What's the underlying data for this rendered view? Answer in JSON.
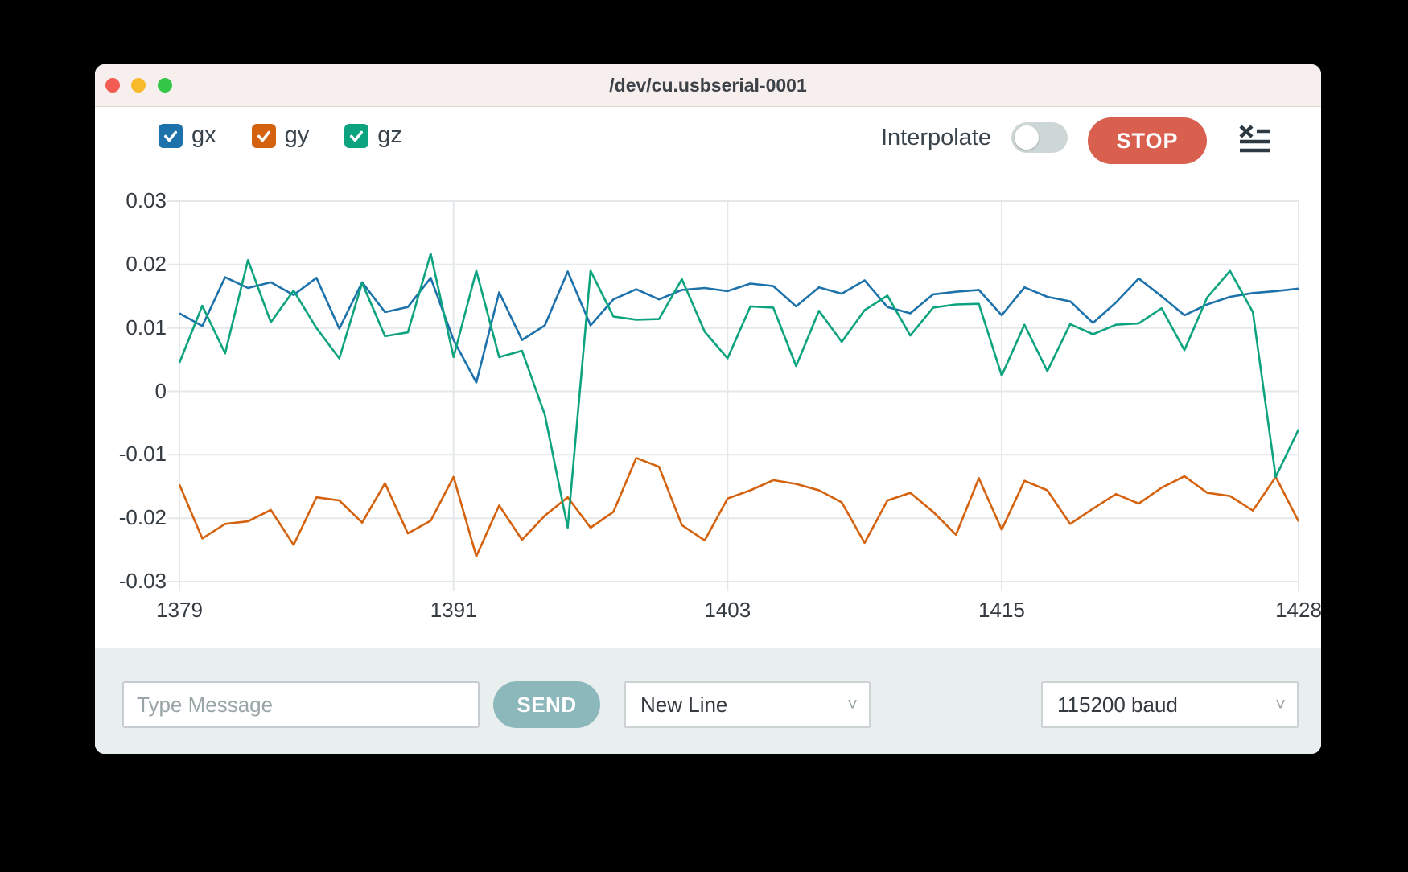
{
  "window": {
    "title": "/dev/cu.usbserial-0001"
  },
  "controls": {
    "interpolate_label": "Interpolate",
    "interpolate_on": false,
    "stop_label": "STOP"
  },
  "chart_data": {
    "type": "line",
    "title": "",
    "xlabel": "",
    "ylabel": "",
    "xlim": [
      1379,
      1428
    ],
    "ylim": [
      -0.03,
      0.03
    ],
    "grid": true,
    "legend_position": "top-left-checkboxes",
    "xticks": [
      1379,
      1391,
      1403,
      1415,
      1428
    ],
    "xtick_labels": [
      "1379",
      "1391",
      "1403",
      "1415",
      "1428"
    ],
    "yticks": [
      0.03,
      0.02,
      0.01,
      0,
      -0.01,
      -0.02,
      -0.03
    ],
    "ytick_labels": [
      "0.03",
      "0.02",
      "0.01",
      "0",
      "-0.01",
      "-0.02",
      "-0.03"
    ],
    "x": [
      1379,
      1380,
      1381,
      1382,
      1383,
      1384,
      1385,
      1386,
      1387,
      1388,
      1389,
      1390,
      1391,
      1392,
      1393,
      1394,
      1395,
      1396,
      1397,
      1398,
      1399,
      1400,
      1401,
      1402,
      1403,
      1404,
      1405,
      1406,
      1407,
      1408,
      1409,
      1410,
      1411,
      1412,
      1413,
      1414,
      1415,
      1416,
      1417,
      1418,
      1419,
      1420,
      1421,
      1422,
      1423,
      1424,
      1425,
      1426,
      1427,
      1428
    ],
    "series": [
      {
        "name": "gx",
        "color": "#1d72ab",
        "checked": true,
        "values": [
          0.0123,
          0.0103,
          0.018,
          0.0163,
          0.0172,
          0.0152,
          0.0179,
          0.0099,
          0.0172,
          0.0125,
          0.0133,
          0.0179,
          0.0081,
          0.0014,
          0.0156,
          0.0081,
          0.0104,
          0.0189,
          0.0104,
          0.0145,
          0.0161,
          0.0145,
          0.016,
          0.0163,
          0.0158,
          0.017,
          0.0166,
          0.0134,
          0.0164,
          0.0154,
          0.0175,
          0.0133,
          0.0123,
          0.0153,
          0.0157,
          0.016,
          0.012,
          0.0164,
          0.0149,
          0.0142,
          0.0108,
          0.014,
          0.0178,
          0.015,
          0.012,
          0.0137,
          0.0149,
          0.0155,
          0.0158,
          0.0162
        ]
      },
      {
        "name": "gy",
        "color": "#d4620f",
        "checked": true,
        "values": [
          -0.0147,
          -0.0232,
          -0.0209,
          -0.0205,
          -0.0187,
          -0.0242,
          -0.0167,
          -0.0172,
          -0.0207,
          -0.0145,
          -0.0224,
          -0.0204,
          -0.0135,
          -0.026,
          -0.018,
          -0.0234,
          -0.0196,
          -0.0167,
          -0.0215,
          -0.019,
          -0.0105,
          -0.0119,
          -0.0211,
          -0.0235,
          -0.0169,
          -0.0156,
          -0.014,
          -0.0146,
          -0.0156,
          -0.0175,
          -0.0239,
          -0.0172,
          -0.016,
          -0.019,
          -0.0226,
          -0.0137,
          -0.0218,
          -0.0141,
          -0.0156,
          -0.0209,
          -0.0185,
          -0.0162,
          -0.0177,
          -0.0152,
          -0.0134,
          -0.016,
          -0.0165,
          -0.0188,
          -0.0135,
          -0.0205
        ]
      },
      {
        "name": "gz",
        "color": "#0da37e",
        "checked": true,
        "values": [
          0.0045,
          0.0135,
          0.006,
          0.0207,
          0.0109,
          0.0159,
          0.01,
          0.0052,
          0.0171,
          0.0087,
          0.0093,
          0.0217,
          0.0054,
          0.019,
          0.0054,
          0.0064,
          -0.0037,
          -0.0215,
          0.019,
          0.0118,
          0.0113,
          0.0114,
          0.0177,
          0.0094,
          0.0052,
          0.0134,
          0.0132,
          0.004,
          0.0127,
          0.0078,
          0.0128,
          0.0151,
          0.0088,
          0.0132,
          0.0137,
          0.0138,
          0.0025,
          0.0105,
          0.0032,
          0.0106,
          0.009,
          0.0105,
          0.0107,
          0.0131,
          0.0065,
          0.0148,
          0.019,
          0.0125,
          -0.0135,
          -0.006
        ]
      }
    ]
  },
  "composer": {
    "placeholder": "Type Message",
    "send_label": "SEND",
    "line_ending_selected": "New Line",
    "baud_selected": "115200 baud"
  }
}
